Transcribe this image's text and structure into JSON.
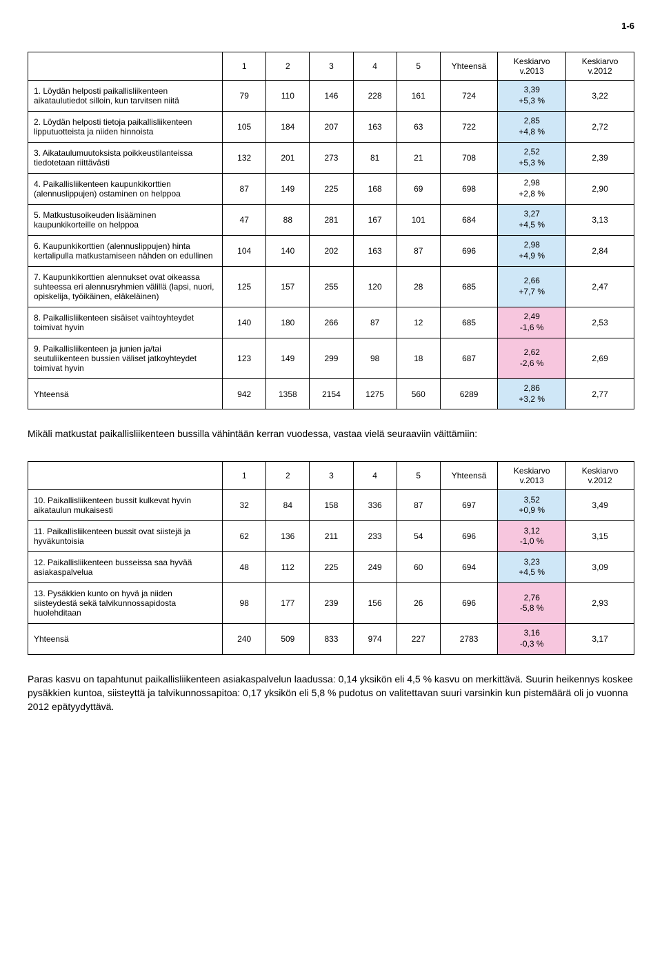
{
  "page_number": "1-6",
  "headers": {
    "c1": "1",
    "c2": "2",
    "c3": "3",
    "c4": "4",
    "c5": "5",
    "yht": "Yhteensä",
    "k2013_a": "Keskiarvo",
    "k2013_b": "v.2013",
    "k2012_a": "Keskiarvo",
    "k2012_b": "v.2012"
  },
  "table1": {
    "rows": [
      {
        "label": "1. Löydän helposti paikallisliikenteen aikataulutiedot silloin, kun tarvitsen niitä",
        "v": [
          "79",
          "110",
          "146",
          "228",
          "161",
          "724"
        ],
        "k13a": "3,39",
        "k13b": "+5,3 %",
        "k12": "3,22",
        "hl": "blue"
      },
      {
        "label": "2. Löydän helposti tietoja paikallisliikenteen lipputuotteista ja niiden hinnoista",
        "v": [
          "105",
          "184",
          "207",
          "163",
          "63",
          "722"
        ],
        "k13a": "2,85",
        "k13b": "+4,8 %",
        "k12": "2,72",
        "hl": "blue"
      },
      {
        "label": "3. Aikataulumuutoksista poikkeustilanteissa tiedotetaan riittävästi",
        "v": [
          "132",
          "201",
          "273",
          "81",
          "21",
          "708"
        ],
        "k13a": "2,52",
        "k13b": "+5,3 %",
        "k12": "2,39",
        "hl": "blue"
      },
      {
        "label": "4. Paikallisliikenteen kaupunkikorttien (alennuslippujen) ostaminen on helppoa",
        "v": [
          "87",
          "149",
          "225",
          "168",
          "69",
          "698"
        ],
        "k13a": "2,98",
        "k13b": "+2,8 %",
        "k12": "2,90",
        "hl": ""
      },
      {
        "label": "5. Matkustusoikeuden lisääminen kaupunkikorteille on helppoa",
        "v": [
          "47",
          "88",
          "281",
          "167",
          "101",
          "684"
        ],
        "k13a": "3,27",
        "k13b": "+4,5 %",
        "k12": "3,13",
        "hl": "blue"
      },
      {
        "label": "6. Kaupunkikorttien (alennuslippujen) hinta kertalipulla matkustamiseen nähden on edullinen",
        "v": [
          "104",
          "140",
          "202",
          "163",
          "87",
          "696"
        ],
        "k13a": "2,98",
        "k13b": "+4,9 %",
        "k12": "2,84",
        "hl": "blue"
      },
      {
        "label": "7. Kaupunkikorttien alennukset ovat oikeassa suhteessa eri alennusryhmien välillä (lapsi, nuori, opiskelija, työikäinen, eläkeläinen)",
        "v": [
          "125",
          "157",
          "255",
          "120",
          "28",
          "685"
        ],
        "k13a": "2,66",
        "k13b": "+7,7 %",
        "k12": "2,47",
        "hl": "blue"
      },
      {
        "label": "8. Paikallisliikenteen sisäiset vaihtoyhteydet toimivat hyvin",
        "v": [
          "140",
          "180",
          "266",
          "87",
          "12",
          "685"
        ],
        "k13a": "2,49",
        "k13b": "-1,6 %",
        "k12": "2,53",
        "hl": "pink"
      },
      {
        "label": "9. Paikallisliikenteen ja junien ja/tai seutuliikenteen bussien väliset jatkoyhteydet toimivat hyvin",
        "v": [
          "123",
          "149",
          "299",
          "98",
          "18",
          "687"
        ],
        "k13a": "2,62",
        "k13b": "-2,6 %",
        "k12": "2,69",
        "hl": "pink"
      }
    ],
    "total": {
      "label": "Yhteensä",
      "v": [
        "942",
        "1358",
        "2154",
        "1275",
        "560",
        "6289"
      ],
      "k13a": "2,86",
      "k13b": "+3,2 %",
      "k12": "2,77",
      "hl": "blue"
    }
  },
  "intro_text": "Mikäli matkustat paikallisliikenteen bussilla vähintään kerran vuodessa, vastaa vielä seuraaviin väittämiin:",
  "table2": {
    "rows": [
      {
        "label": "10. Paikallisliikenteen bussit kulkevat hyvin aikataulun mukaisesti",
        "v": [
          "32",
          "84",
          "158",
          "336",
          "87",
          "697"
        ],
        "k13a": "3,52",
        "k13b": "+0,9 %",
        "k12": "3,49",
        "hl": "blue"
      },
      {
        "label": "11. Paikallisliikenteen bussit ovat siistejä ja hyväkuntoisia",
        "v": [
          "62",
          "136",
          "211",
          "233",
          "54",
          "696"
        ],
        "k13a": "3,12",
        "k13b": "-1,0 %",
        "k12": "3,15",
        "hl": "pink"
      },
      {
        "label": "12. Paikallisliikenteen busseissa saa hyvää asiakaspalvelua",
        "v": [
          "48",
          "112",
          "225",
          "249",
          "60",
          "694"
        ],
        "k13a": "3,23",
        "k13b": "+4,5 %",
        "k12": "3,09",
        "hl": "blue"
      },
      {
        "label": "13. Pysäkkien kunto on hyvä ja niiden siisteydestä sekä talvikunnossapidosta huolehditaan",
        "v": [
          "98",
          "177",
          "239",
          "156",
          "26",
          "696"
        ],
        "k13a": "2,76",
        "k13b": "-5,8 %",
        "k12": "2,93",
        "hl": "pink"
      }
    ],
    "total": {
      "label": "Yhteensä",
      "v": [
        "240",
        "509",
        "833",
        "974",
        "227",
        "2783"
      ],
      "k13a": "3,16",
      "k13b": "-0,3 %",
      "k12": "3,17",
      "hl": "pink"
    }
  },
  "footer_text": "Paras kasvu on tapahtunut paikallisliikenteen asiakaspalvelun laadussa: 0,14 yksikön eli 4,5 % kasvu on merkittävä. Suurin heikennys koskee pysäkkien kuntoa, siisteyttä ja talvikunnossapitoa: 0,17 yksikön eli 5,8 % pudotus on valitettavan suuri varsinkin kun pistemäärä oli jo vuonna 2012 epätyydyttävä."
}
